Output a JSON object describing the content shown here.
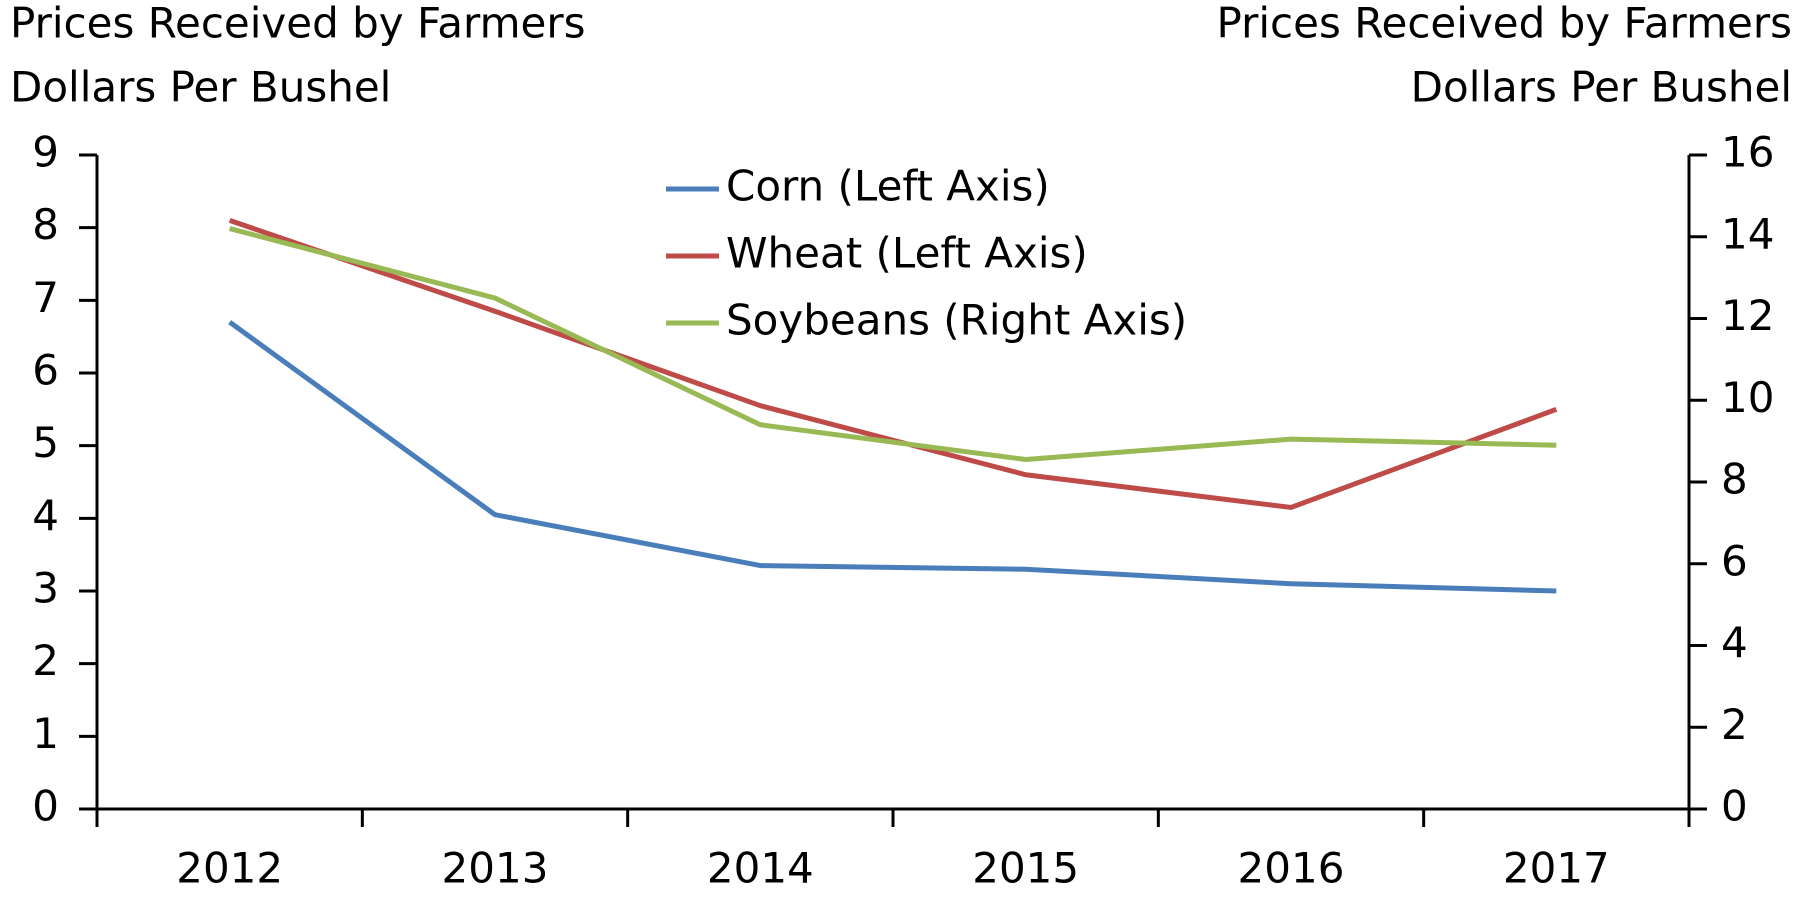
{
  "chart_data": {
    "type": "line",
    "ylabel": [
      "Prices Received by Farmers",
      "Dollars Per Bushel"
    ],
    "y2label": [
      "Prices Received by Farmers",
      "Dollars Per Bushel"
    ],
    "categories": [
      "2012",
      "2013",
      "2014",
      "2015",
      "2016",
      "2017"
    ],
    "series": [
      {
        "name": "Corn (Left Axis)",
        "color": "#4a7ebb",
        "values": [
          6.7,
          4.05,
          3.35,
          3.3,
          3.1,
          3.0
        ]
      },
      {
        "name": "Wheat (Left Axis)",
        "color": "#be4b48",
        "values": [
          8.1,
          6.85,
          5.55,
          4.6,
          4.15,
          5.5
        ]
      },
      {
        "name": "Soybeans (Right Axis)",
        "color": "#98b954",
        "axis": "y2",
        "values": [
          14.2,
          12.5,
          9.4,
          8.55,
          9.05,
          8.9
        ]
      }
    ],
    "ylim": [
      0,
      9
    ],
    "yticks": [
      0,
      1,
      2,
      3,
      4,
      5,
      6,
      7,
      8,
      9
    ],
    "y2lim": [
      0,
      16
    ],
    "y2ticks": [
      0,
      2,
      4,
      6,
      8,
      10,
      12,
      14,
      16
    ],
    "grid": false,
    "legend": "top"
  }
}
